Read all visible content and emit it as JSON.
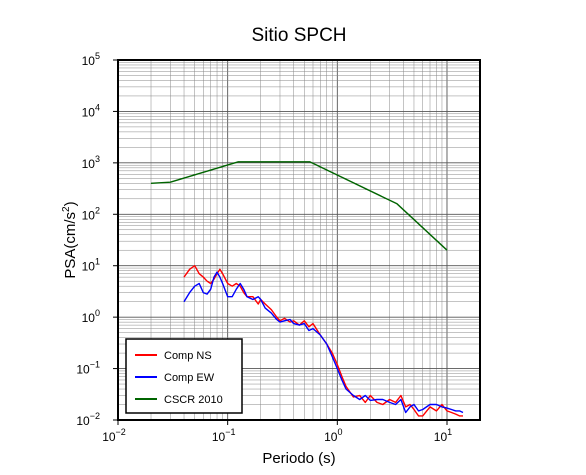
{
  "chart_data": {
    "type": "line",
    "title": "Sitio SPCH",
    "xlabel": "Periodo (s)",
    "ylabel": "PSA(cm/s2)",
    "x_scale": "log",
    "y_scale": "log",
    "xlim": [
      0.01,
      20
    ],
    "ylim": [
      0.01,
      100000
    ],
    "grid": true,
    "legend_position": "bottom-left",
    "x_ticks": [
      {
        "base": "10",
        "exp": "−2",
        "value": 0.01
      },
      {
        "base": "10",
        "exp": "−1",
        "value": 0.1
      },
      {
        "base": "10",
        "exp": "0",
        "value": 1
      },
      {
        "base": "10",
        "exp": "1",
        "value": 10
      }
    ],
    "y_ticks": [
      {
        "base": "10",
        "exp": "−2",
        "value": 0.01
      },
      {
        "base": "10",
        "exp": "−1",
        "value": 0.1
      },
      {
        "base": "10",
        "exp": "0",
        "value": 1
      },
      {
        "base": "10",
        "exp": "1",
        "value": 10
      },
      {
        "base": "10",
        "exp": "2",
        "value": 100
      },
      {
        "base": "10",
        "exp": "3",
        "value": 1000
      },
      {
        "base": "10",
        "exp": "4",
        "value": 10000
      },
      {
        "base": "10",
        "exp": "5",
        "value": 100000
      }
    ],
    "series": [
      {
        "name": "Comp NS",
        "color": "#ff0000",
        "x": [
          0.04,
          0.045,
          0.05,
          0.055,
          0.06,
          0.065,
          0.07,
          0.075,
          0.08,
          0.085,
          0.09,
          0.1,
          0.11,
          0.12,
          0.13,
          0.14,
          0.15,
          0.17,
          0.19,
          0.2,
          0.22,
          0.25,
          0.28,
          0.3,
          0.33,
          0.37,
          0.4,
          0.45,
          0.5,
          0.55,
          0.6,
          0.7,
          0.8,
          0.9,
          1.0,
          1.1,
          1.2,
          1.4,
          1.6,
          1.8,
          2.0,
          2.3,
          2.6,
          3.0,
          3.4,
          3.8,
          4.2,
          4.6,
          5.0,
          5.5,
          6.0,
          7.0,
          8.0,
          9.0,
          10.0,
          11.0,
          12.0,
          13.0,
          14.0
        ],
        "y": [
          6.0,
          8.5,
          10.0,
          7.0,
          6.0,
          5.0,
          4.5,
          5.5,
          7.0,
          8.5,
          7.0,
          4.5,
          4.0,
          4.5,
          4.0,
          3.0,
          2.5,
          2.5,
          1.8,
          2.2,
          1.8,
          1.4,
          1.0,
          0.85,
          0.95,
          0.8,
          0.85,
          0.7,
          0.85,
          0.65,
          0.75,
          0.45,
          0.3,
          0.2,
          0.12,
          0.07,
          0.045,
          0.028,
          0.03,
          0.022,
          0.03,
          0.022,
          0.02,
          0.025,
          0.022,
          0.03,
          0.018,
          0.02,
          0.016,
          0.012,
          0.012,
          0.018,
          0.015,
          0.02,
          0.015,
          0.014,
          0.013,
          0.012,
          0.012
        ]
      },
      {
        "name": "Comp EW",
        "color": "#0000ff",
        "x": [
          0.04,
          0.045,
          0.05,
          0.055,
          0.06,
          0.065,
          0.07,
          0.075,
          0.08,
          0.085,
          0.09,
          0.1,
          0.11,
          0.12,
          0.13,
          0.14,
          0.15,
          0.17,
          0.19,
          0.2,
          0.22,
          0.25,
          0.28,
          0.3,
          0.33,
          0.37,
          0.4,
          0.45,
          0.5,
          0.55,
          0.6,
          0.7,
          0.8,
          0.9,
          1.0,
          1.1,
          1.2,
          1.4,
          1.6,
          1.8,
          2.0,
          2.3,
          2.6,
          3.0,
          3.4,
          3.8,
          4.2,
          4.6,
          5.0,
          5.5,
          6.0,
          7.0,
          8.0,
          9.0,
          10.0,
          11.0,
          12.0,
          13.0,
          14.0
        ],
        "y": [
          2.0,
          3.0,
          4.0,
          4.5,
          3.0,
          2.8,
          3.5,
          6.0,
          7.5,
          6.0,
          4.5,
          2.5,
          2.5,
          3.5,
          4.5,
          3.5,
          2.5,
          2.2,
          2.5,
          2.2,
          1.5,
          1.2,
          0.9,
          0.8,
          0.85,
          0.9,
          0.75,
          0.7,
          0.75,
          0.55,
          0.6,
          0.45,
          0.3,
          0.17,
          0.1,
          0.06,
          0.04,
          0.03,
          0.025,
          0.03,
          0.024,
          0.025,
          0.025,
          0.022,
          0.02,
          0.025,
          0.014,
          0.018,
          0.02,
          0.015,
          0.016,
          0.02,
          0.02,
          0.018,
          0.017,
          0.016,
          0.015,
          0.015,
          0.014
        ]
      },
      {
        "name": "CSCR 2010",
        "color": "#006400",
        "x": [
          0.02,
          0.03,
          0.125,
          0.56,
          3.5,
          10.0
        ],
        "y": [
          400,
          420,
          1050,
          1050,
          160,
          20
        ]
      }
    ]
  }
}
